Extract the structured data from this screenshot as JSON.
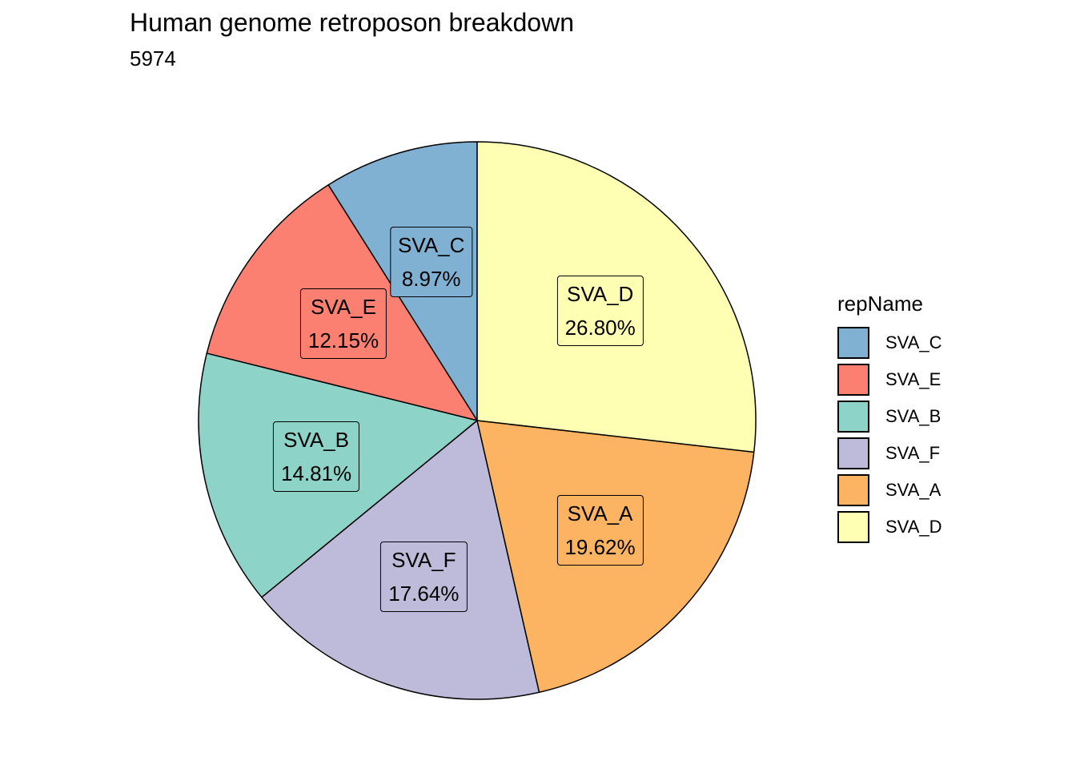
{
  "chart_data": {
    "type": "pie",
    "title": "Human genome retroposon breakdown",
    "subtitle": "5974",
    "legend_title": "repName",
    "legend_position": "right",
    "slices": [
      {
        "name": "SVA_C",
        "value": 8.97,
        "label": "8.97%",
        "color": "#80B1D3"
      },
      {
        "name": "SVA_E",
        "value": 12.15,
        "label": "12.15%",
        "color": "#FB8072"
      },
      {
        "name": "SVA_B",
        "value": 14.81,
        "label": "14.81%",
        "color": "#8DD3C7"
      },
      {
        "name": "SVA_F",
        "value": 17.64,
        "label": "17.64%",
        "color": "#BEBADA"
      },
      {
        "name": "SVA_A",
        "value": 19.62,
        "label": "19.62%",
        "color": "#FDB462"
      },
      {
        "name": "SVA_D",
        "value": 26.8,
        "label": "26.80%",
        "color": "#FFFFB3"
      }
    ]
  }
}
